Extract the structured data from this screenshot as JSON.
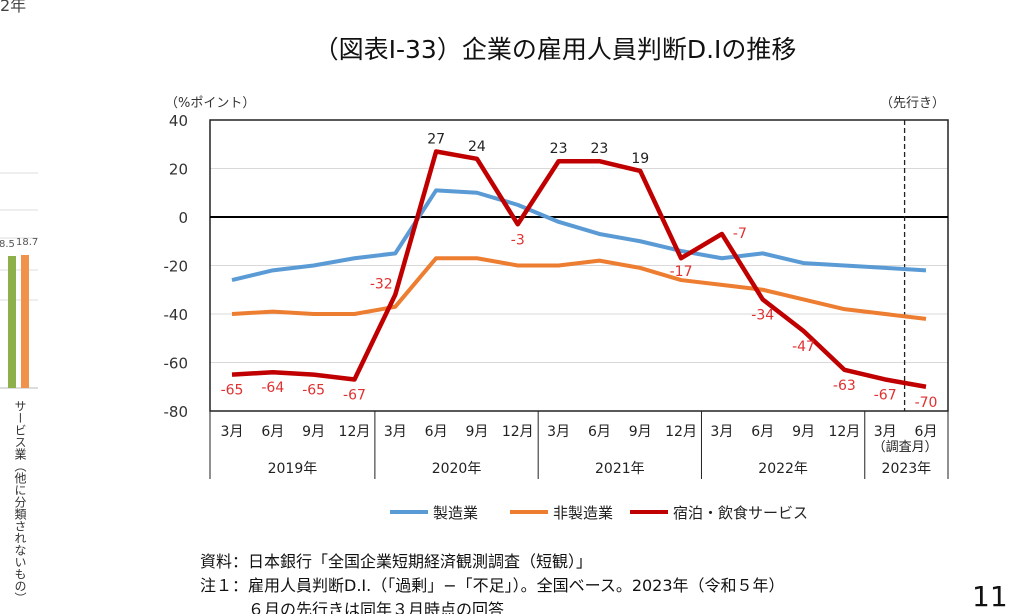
{
  "left_fragment": {
    "year_text": "2年",
    "bar_labels": [
      "8.5",
      "18.7"
    ],
    "bar_colors": [
      "#8db04a",
      "#f0924a"
    ],
    "category_label": "サービス業（他に分類されないもの）"
  },
  "title": "（図表Ⅰ-33）企業の雇用人員判断D.Iの推移",
  "chart_data": {
    "type": "line",
    "ylabel": "（%ポイント）",
    "forecast_label": "（先行き）",
    "survey_month_label": "（調査月）",
    "ylim": [
      -80,
      40
    ],
    "yticks": [
      40,
      20,
      0,
      -20,
      -40,
      -60,
      -80
    ],
    "grid": true,
    "legend_position": "bottom",
    "x_months": [
      "3月",
      "6月",
      "9月",
      "12月",
      "3月",
      "6月",
      "9月",
      "12月",
      "3月",
      "6月",
      "9月",
      "12月",
      "3月",
      "6月",
      "9月",
      "12月",
      "3月",
      "6月"
    ],
    "x_years": [
      "2019年",
      "2020年",
      "2021年",
      "2022年",
      "2023年"
    ],
    "series": [
      {
        "name": "製造業",
        "color": "#5b9bd5",
        "values": [
          -26,
          -22,
          -20,
          -17,
          -15,
          11,
          10,
          5,
          -2,
          -7,
          -10,
          -14,
          -17,
          -15,
          -19,
          -20,
          -21,
          -22
        ]
      },
      {
        "name": "非製造業",
        "color": "#ed7d31",
        "values": [
          -40,
          -39,
          -40,
          -40,
          -37,
          -17,
          -17,
          -20,
          -20,
          -18,
          -21,
          -26,
          -28,
          -30,
          -34,
          -38,
          -40,
          -42
        ]
      },
      {
        "name": "宿泊・飲食サービス",
        "color": "#c00000",
        "values": [
          -65,
          -64,
          -65,
          -67,
          -32,
          27,
          24,
          -3,
          23,
          23,
          19,
          -17,
          -7,
          -34,
          -47,
          -63,
          -67,
          -70
        ],
        "data_labels": true
      }
    ]
  },
  "notes": [
    "資料：日本銀行「全国企業短期経済観測調査（短観）」",
    "注１：雇用人員判断D.I.（「過剰」−「不足」）。全国ベース。2023年（令和５年）",
    "　　　６月の先行きは同年３月時点の回答"
  ],
  "page_number": "11"
}
